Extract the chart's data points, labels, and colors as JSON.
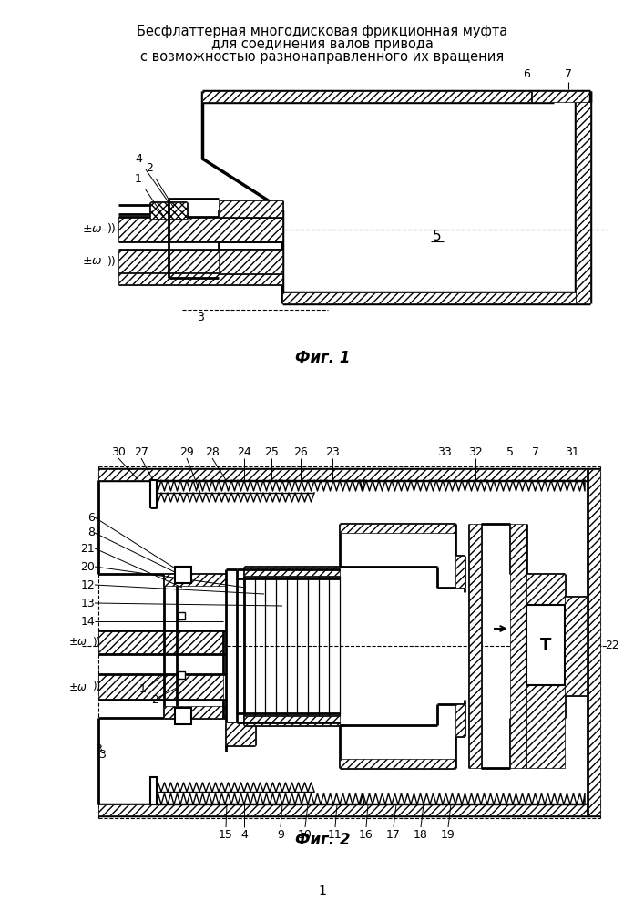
{
  "title_line1": "Бесфлаттерная многодисковая фрикционная муфта",
  "title_line2": "для соединения валов привода",
  "title_line3": "с возможностью разнонаправленного их вращения",
  "fig1_label": "Фиг. 1",
  "fig2_label": "Фиг. 2",
  "page_number": "1",
  "background": "#ffffff",
  "line_color": "#000000"
}
